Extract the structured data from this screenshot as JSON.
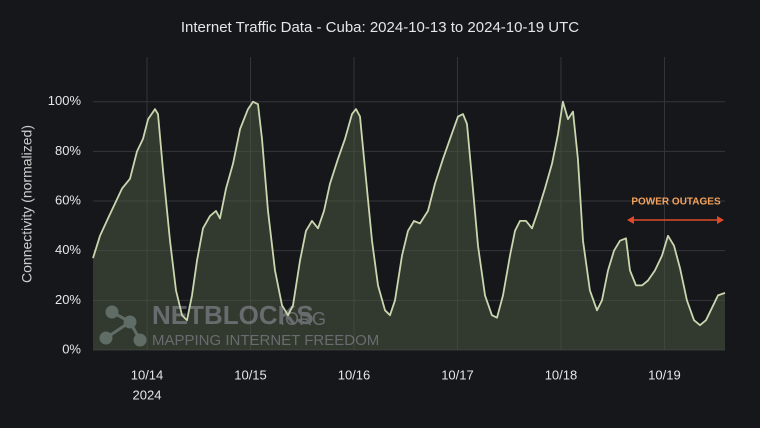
{
  "chart_data": {
    "type": "area",
    "title": "Internet Traffic Data - Cuba: 2024-10-13 to 2024-10-19 UTC",
    "y_label": "Connectivity (normalized)",
    "year_label": "2024",
    "annotation": "POWER OUTAGES",
    "watermark": {
      "name": "NETBLOCKS",
      "suffix": ".ORG",
      "tagline": "MAPPING INTERNET FREEDOM"
    },
    "color": "#c9d6ae",
    "fill": "#4a553f",
    "grid": true,
    "xlim": [
      0.478,
      6.585
    ],
    "xticks": [
      {
        "value": 1,
        "label": "10/14"
      },
      {
        "value": 2,
        "label": "10/15"
      },
      {
        "value": 3,
        "label": "10/16"
      },
      {
        "value": 4,
        "label": "10/17"
      },
      {
        "value": 5,
        "label": "10/18"
      },
      {
        "value": 6,
        "label": "10/19"
      }
    ],
    "ylim": [
      0,
      118
    ],
    "yticks": [
      {
        "value": 0,
        "label": "0%"
      },
      {
        "value": 20,
        "label": "20%"
      },
      {
        "value": 40,
        "label": "40%"
      },
      {
        "value": 60,
        "label": "60%"
      },
      {
        "value": 80,
        "label": "80%"
      },
      {
        "value": 100,
        "label": "100%"
      }
    ],
    "x": [
      0.478,
      0.546,
      0.623,
      0.691,
      0.758,
      0.836,
      0.903,
      0.961,
      1.01,
      1.077,
      1.106,
      1.155,
      1.222,
      1.28,
      1.338,
      1.386,
      1.435,
      1.483,
      1.541,
      1.609,
      1.667,
      1.705,
      1.763,
      1.831,
      1.899,
      1.976,
      2.024,
      2.072,
      2.111,
      2.169,
      2.237,
      2.304,
      2.362,
      2.411,
      2.478,
      2.536,
      2.594,
      2.652,
      2.71,
      2.768,
      2.845,
      2.913,
      2.981,
      3.019,
      3.058,
      3.106,
      3.174,
      3.232,
      3.3,
      3.348,
      3.396,
      3.464,
      3.522,
      3.58,
      3.638,
      3.715,
      3.783,
      3.86,
      3.928,
      4.005,
      4.053,
      4.092,
      4.14,
      4.198,
      4.266,
      4.333,
      4.382,
      4.44,
      4.507,
      4.556,
      4.604,
      4.662,
      4.72,
      4.778,
      4.845,
      4.913,
      4.971,
      5.019,
      5.068,
      5.116,
      5.164,
      5.213,
      5.28,
      5.348,
      5.396,
      5.454,
      5.512,
      5.57,
      5.628,
      5.667,
      5.725,
      5.783,
      5.841,
      5.908,
      5.976,
      6.034,
      6.092,
      6.15,
      6.217,
      6.285,
      6.343,
      6.401,
      6.459,
      6.517,
      6.585
    ],
    "values": [
      37,
      46,
      53,
      59,
      65,
      69,
      80,
      85,
      93,
      97,
      95,
      72,
      44,
      24,
      14,
      12,
      22,
      36,
      49,
      54,
      56,
      53,
      65,
      75,
      89,
      97,
      100,
      99,
      85,
      56,
      32,
      18,
      14,
      18,
      36,
      48,
      52,
      49,
      56,
      67,
      77,
      85,
      95,
      97,
      94,
      73,
      44,
      26,
      16,
      14,
      20,
      38,
      48,
      52,
      51,
      56,
      67,
      77,
      85,
      94,
      95,
      91,
      69,
      42,
      22,
      14,
      13,
      22,
      38,
      48,
      52,
      52,
      49,
      56,
      65,
      75,
      87,
      100,
      93,
      96,
      77,
      44,
      24,
      16,
      20,
      32,
      40,
      44,
      45,
      32,
      26,
      26,
      28,
      32,
      38,
      46,
      42,
      33,
      20,
      12,
      10,
      12,
      17,
      22,
      23
    ]
  }
}
